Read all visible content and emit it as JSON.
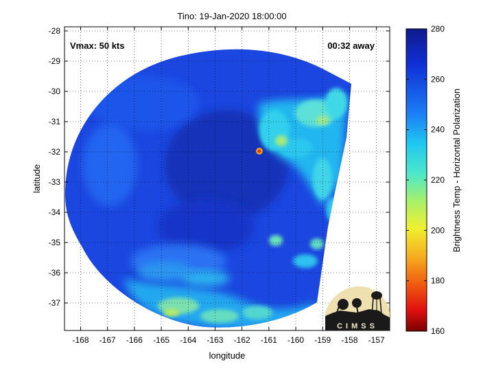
{
  "title": "Tino: 19-Jan-2020 18:00:00",
  "vmax_label": "Vmax: 50 kts",
  "time_label": "00:32 away",
  "xlabel": "longitude",
  "ylabel": "latitude",
  "colorbar_label": "Brightness Temp - Horizontal Polarization",
  "logo_text": "CIMSS",
  "x_ticks": [
    -168,
    -167,
    -166,
    -165,
    -164,
    -163,
    -162,
    -161,
    -160,
    -159,
    -158,
    -157
  ],
  "y_ticks": [
    -28,
    -29,
    -30,
    -31,
    -32,
    -33,
    -34,
    -35,
    -36,
    -37
  ],
  "colorbar_ticks": [
    280,
    260,
    240,
    220,
    200,
    180,
    160
  ],
  "colors": {
    "background_swath": "#1b46e0",
    "deep_blue": "#1028a8",
    "cyan": "#1fd6e6",
    "light_green": "#8ee6a6",
    "yellow_green": "#c8e85a",
    "orange": "#f5a21a"
  },
  "chart_data": {
    "type": "heatmap",
    "title": "Tino: 19-Jan-2020 18:00:00",
    "xlabel": "longitude",
    "ylabel": "latitude",
    "xlim": [
      -168.5,
      -156.6
    ],
    "ylim": [
      -38.0,
      -27.9
    ],
    "colorbar": {
      "min": 160,
      "max": 280,
      "label": "Brightness Temp - Horizontal Polarization"
    },
    "grid": true,
    "annotations": [
      "Vmax: 50 kts",
      "00:32 away"
    ]
  }
}
